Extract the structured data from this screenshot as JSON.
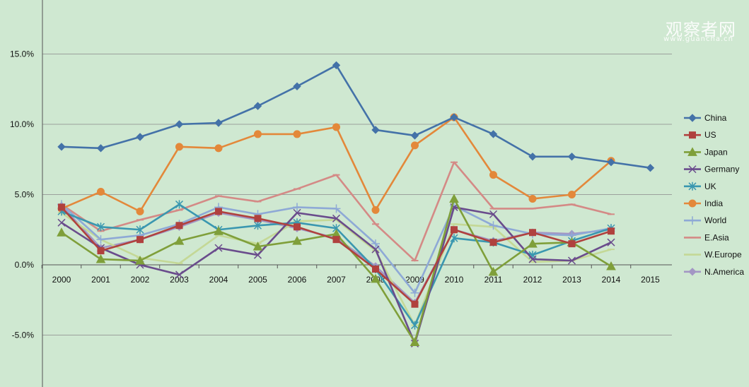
{
  "watermark": {
    "text": "观察者网",
    "url": "www.guancha.cn"
  },
  "chart_data": {
    "type": "line",
    "title": "",
    "xlabel": "",
    "ylabel": "",
    "x": [
      "2000",
      "2001",
      "2002",
      "2003",
      "2004",
      "2005",
      "2006",
      "2007",
      "2008",
      "2009",
      "2010",
      "2011",
      "2012",
      "2013",
      "2014",
      "2015"
    ],
    "ylim": [
      -0.08,
      0.185
    ],
    "yticks": [
      -0.05,
      0.0,
      0.05,
      0.1,
      0.15
    ],
    "ytick_labels": [
      "-5.0%",
      "0.0%",
      "5.0%",
      "10.0%",
      "15.0%"
    ],
    "grid": "horizontal",
    "legend": "right",
    "series": [
      {
        "name": "China",
        "color": "#4472a8",
        "marker": "diamond",
        "values": [
          0.084,
          0.083,
          0.091,
          0.1,
          0.101,
          0.113,
          0.127,
          0.142,
          0.096,
          0.092,
          0.105,
          0.093,
          0.077,
          0.077,
          0.073,
          0.069
        ]
      },
      {
        "name": "US",
        "color": "#b0413e",
        "marker": "square",
        "values": [
          0.041,
          0.01,
          0.018,
          0.028,
          0.038,
          0.033,
          0.027,
          0.018,
          -0.003,
          -0.028,
          0.025,
          0.016,
          0.023,
          0.015,
          0.024,
          null
        ]
      },
      {
        "name": "Japan",
        "color": "#7f9f3a",
        "marker": "triangle",
        "values": [
          0.023,
          0.004,
          0.003,
          0.017,
          0.024,
          0.013,
          0.017,
          0.022,
          -0.01,
          -0.055,
          0.047,
          -0.005,
          0.015,
          0.016,
          -0.001,
          null
        ]
      },
      {
        "name": "Germany",
        "color": "#6a4c8c",
        "marker": "x",
        "values": [
          0.03,
          0.012,
          0.0,
          -0.007,
          0.012,
          0.007,
          0.037,
          0.033,
          0.011,
          -0.056,
          0.041,
          0.036,
          0.004,
          0.003,
          0.016,
          null
        ]
      },
      {
        "name": "UK",
        "color": "#3a97b0",
        "marker": "star",
        "values": [
          0.038,
          0.027,
          0.025,
          0.043,
          0.025,
          0.028,
          0.03,
          0.026,
          -0.003,
          -0.043,
          0.019,
          0.016,
          0.007,
          0.017,
          0.026,
          null
        ]
      },
      {
        "name": "India",
        "color": "#e3883a",
        "marker": "circle",
        "values": [
          0.04,
          0.052,
          0.038,
          0.084,
          0.083,
          0.093,
          0.093,
          0.098,
          0.039,
          0.085,
          0.105,
          0.064,
          0.047,
          0.05,
          0.074,
          null
        ]
      },
      {
        "name": "World",
        "color": "#8ea9d6",
        "marker": "plus",
        "values": [
          0.043,
          0.018,
          0.021,
          0.029,
          0.041,
          0.036,
          0.041,
          0.04,
          0.015,
          -0.02,
          0.042,
          0.028,
          0.022,
          0.021,
          0.026,
          null
        ]
      },
      {
        "name": "E.Asia",
        "color": "#d48a86",
        "marker": "dash",
        "values": [
          0.043,
          0.024,
          0.032,
          0.039,
          0.049,
          0.045,
          0.054,
          0.064,
          0.029,
          0.003,
          0.073,
          0.04,
          0.04,
          0.043,
          0.036,
          null
        ]
      },
      {
        "name": "W.Europe",
        "color": "#c4d896",
        "marker": "dash",
        "values": [
          0.037,
          0.018,
          0.005,
          0.001,
          0.021,
          0.015,
          0.031,
          0.032,
          0.01,
          -0.043,
          0.029,
          0.027,
          0.002,
          0.003,
          0.011,
          null
        ]
      },
      {
        "name": "N.America",
        "color": "#a396c4",
        "marker": "diamond",
        "values": [
          0.042,
          0.012,
          0.018,
          0.027,
          0.037,
          0.032,
          0.026,
          0.019,
          -0.001,
          -0.027,
          0.025,
          0.017,
          0.023,
          0.022,
          0.025,
          null
        ]
      }
    ]
  }
}
